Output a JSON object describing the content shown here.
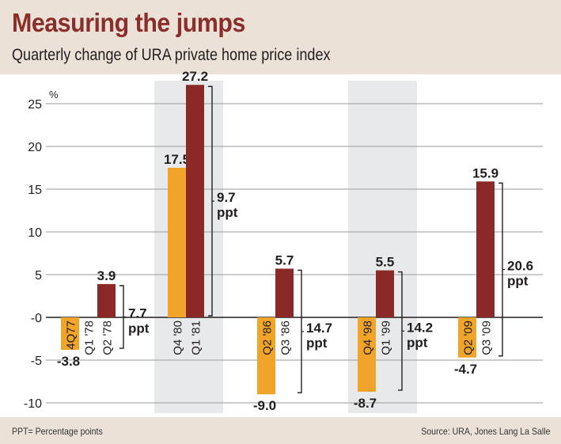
{
  "header": {
    "title": "Measuring the jumps",
    "subtitle": "Quarterly change of URA private home price index"
  },
  "footer": {
    "footnote": "PPT= Percentage points",
    "source": "Source: URA, Jones Lang La Salle"
  },
  "colors": {
    "before": "#f0a42a",
    "after": "#8b2926",
    "band": "#e8e9eb",
    "grid": "#9a9a9a",
    "zero": "#231f20",
    "header_bg": "#ebe1d7",
    "title": "#8b2e2b"
  },
  "chart_data": {
    "type": "bar",
    "title": "Measuring the jumps",
    "subtitle": "Quarterly change of URA private home price index",
    "xlabel": "",
    "ylabel": "%",
    "ylim": [
      -11,
      27
    ],
    "yticks": [
      25,
      20,
      15,
      10,
      5,
      0,
      -5,
      -10
    ],
    "ytick_labels": [
      "25",
      "20",
      "15",
      "10",
      "5",
      "-0",
      "-5",
      "-10"
    ],
    "grid": true,
    "legend": "none",
    "groups": [
      {
        "shaded": false,
        "bars": [
          {
            "category": "4Q77",
            "value": -3.8,
            "label": "-3.8",
            "role": "before"
          },
          {
            "category": "Q1 '78",
            "value": null,
            "label": "",
            "role": "none"
          },
          {
            "category": "Q2 '78",
            "value": 3.9,
            "label": "3.9",
            "role": "after"
          }
        ],
        "jump": {
          "value": 7.7,
          "label": "7.7",
          "unit": "ppt"
        }
      },
      {
        "shaded": true,
        "bars": [
          {
            "category": "Q4 '80",
            "value": 17.5,
            "label": "17.5",
            "role": "before"
          },
          {
            "category": "Q1 '81",
            "value": 27.2,
            "label": "27.2",
            "role": "after"
          }
        ],
        "jump": {
          "value": 9.7,
          "label": "9.7",
          "unit": "ppt"
        }
      },
      {
        "shaded": false,
        "bars": [
          {
            "category": "Q2 '86",
            "value": -9.0,
            "label": "-9.0",
            "role": "before"
          },
          {
            "category": "Q3 '86",
            "value": 5.7,
            "label": "5.7",
            "role": "after"
          }
        ],
        "jump": {
          "value": 14.7,
          "label": "14.7",
          "unit": "ppt"
        }
      },
      {
        "shaded": true,
        "bars": [
          {
            "category": "Q4 '98",
            "value": -8.7,
            "label": "-8.7",
            "role": "before"
          },
          {
            "category": "Q1 '99",
            "value": 5.5,
            "label": "5.5",
            "role": "after"
          }
        ],
        "jump": {
          "value": 14.2,
          "label": "14.2",
          "unit": "ppt"
        }
      },
      {
        "shaded": false,
        "bars": [
          {
            "category": "Q2 '09",
            "value": -4.7,
            "label": "-4.7",
            "role": "before"
          },
          {
            "category": "Q3 '09",
            "value": 15.9,
            "label": "15.9",
            "role": "after"
          }
        ],
        "jump": {
          "value": 20.6,
          "label": "20.6",
          "unit": "ppt"
        }
      }
    ]
  }
}
